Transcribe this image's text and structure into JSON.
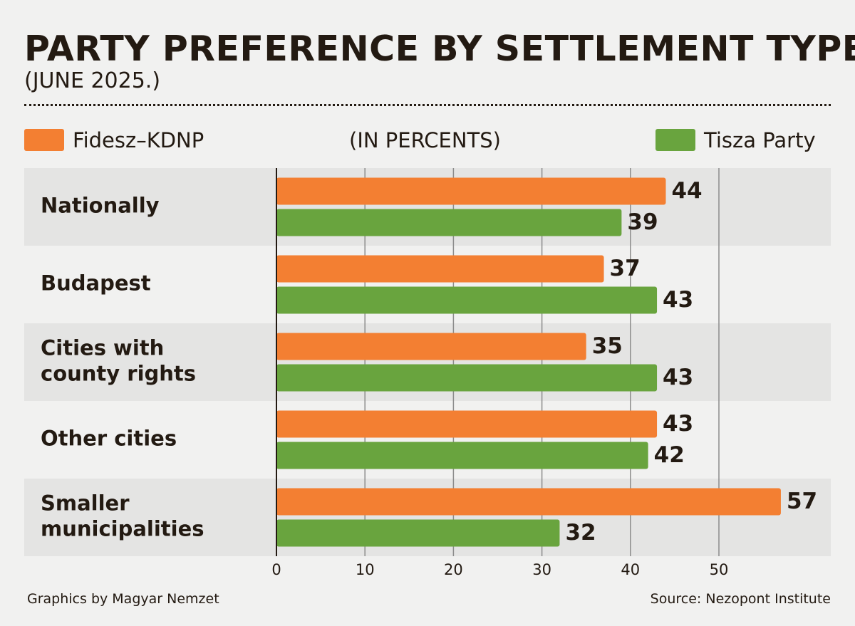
{
  "title": "PARTY PREFERENCE BY SETTLEMENT TYPE",
  "subtitle": "(JUNE 2025.)",
  "units_label": "(IN PERCENTS)",
  "footer": {
    "credit": "Graphics by Magyar Nemzet",
    "source": "Source: Nezopont Institute"
  },
  "colors": {
    "fidesz": "#f37f32",
    "tisza": "#69a43e",
    "band": "#e4e4e3",
    "background": "#f1f1f0",
    "text": "#231a12"
  },
  "chart_data": {
    "type": "bar",
    "orientation": "horizontal",
    "categories": [
      [
        "Nationally"
      ],
      [
        "Budapest"
      ],
      [
        "Cities with",
        "county rights"
      ],
      [
        "Other cities"
      ],
      [
        "Smaller",
        "municipalities"
      ]
    ],
    "series": [
      {
        "name": "Fidesz–KDNP",
        "values": [
          44,
          37,
          35,
          43,
          57
        ]
      },
      {
        "name": "Tisza Party",
        "values": [
          39,
          43,
          43,
          42,
          32
        ]
      }
    ],
    "xlim": [
      0,
      62
    ],
    "xticks": [
      0,
      10,
      20,
      30,
      40,
      50
    ],
    "grid": true,
    "legend_position": "top"
  }
}
